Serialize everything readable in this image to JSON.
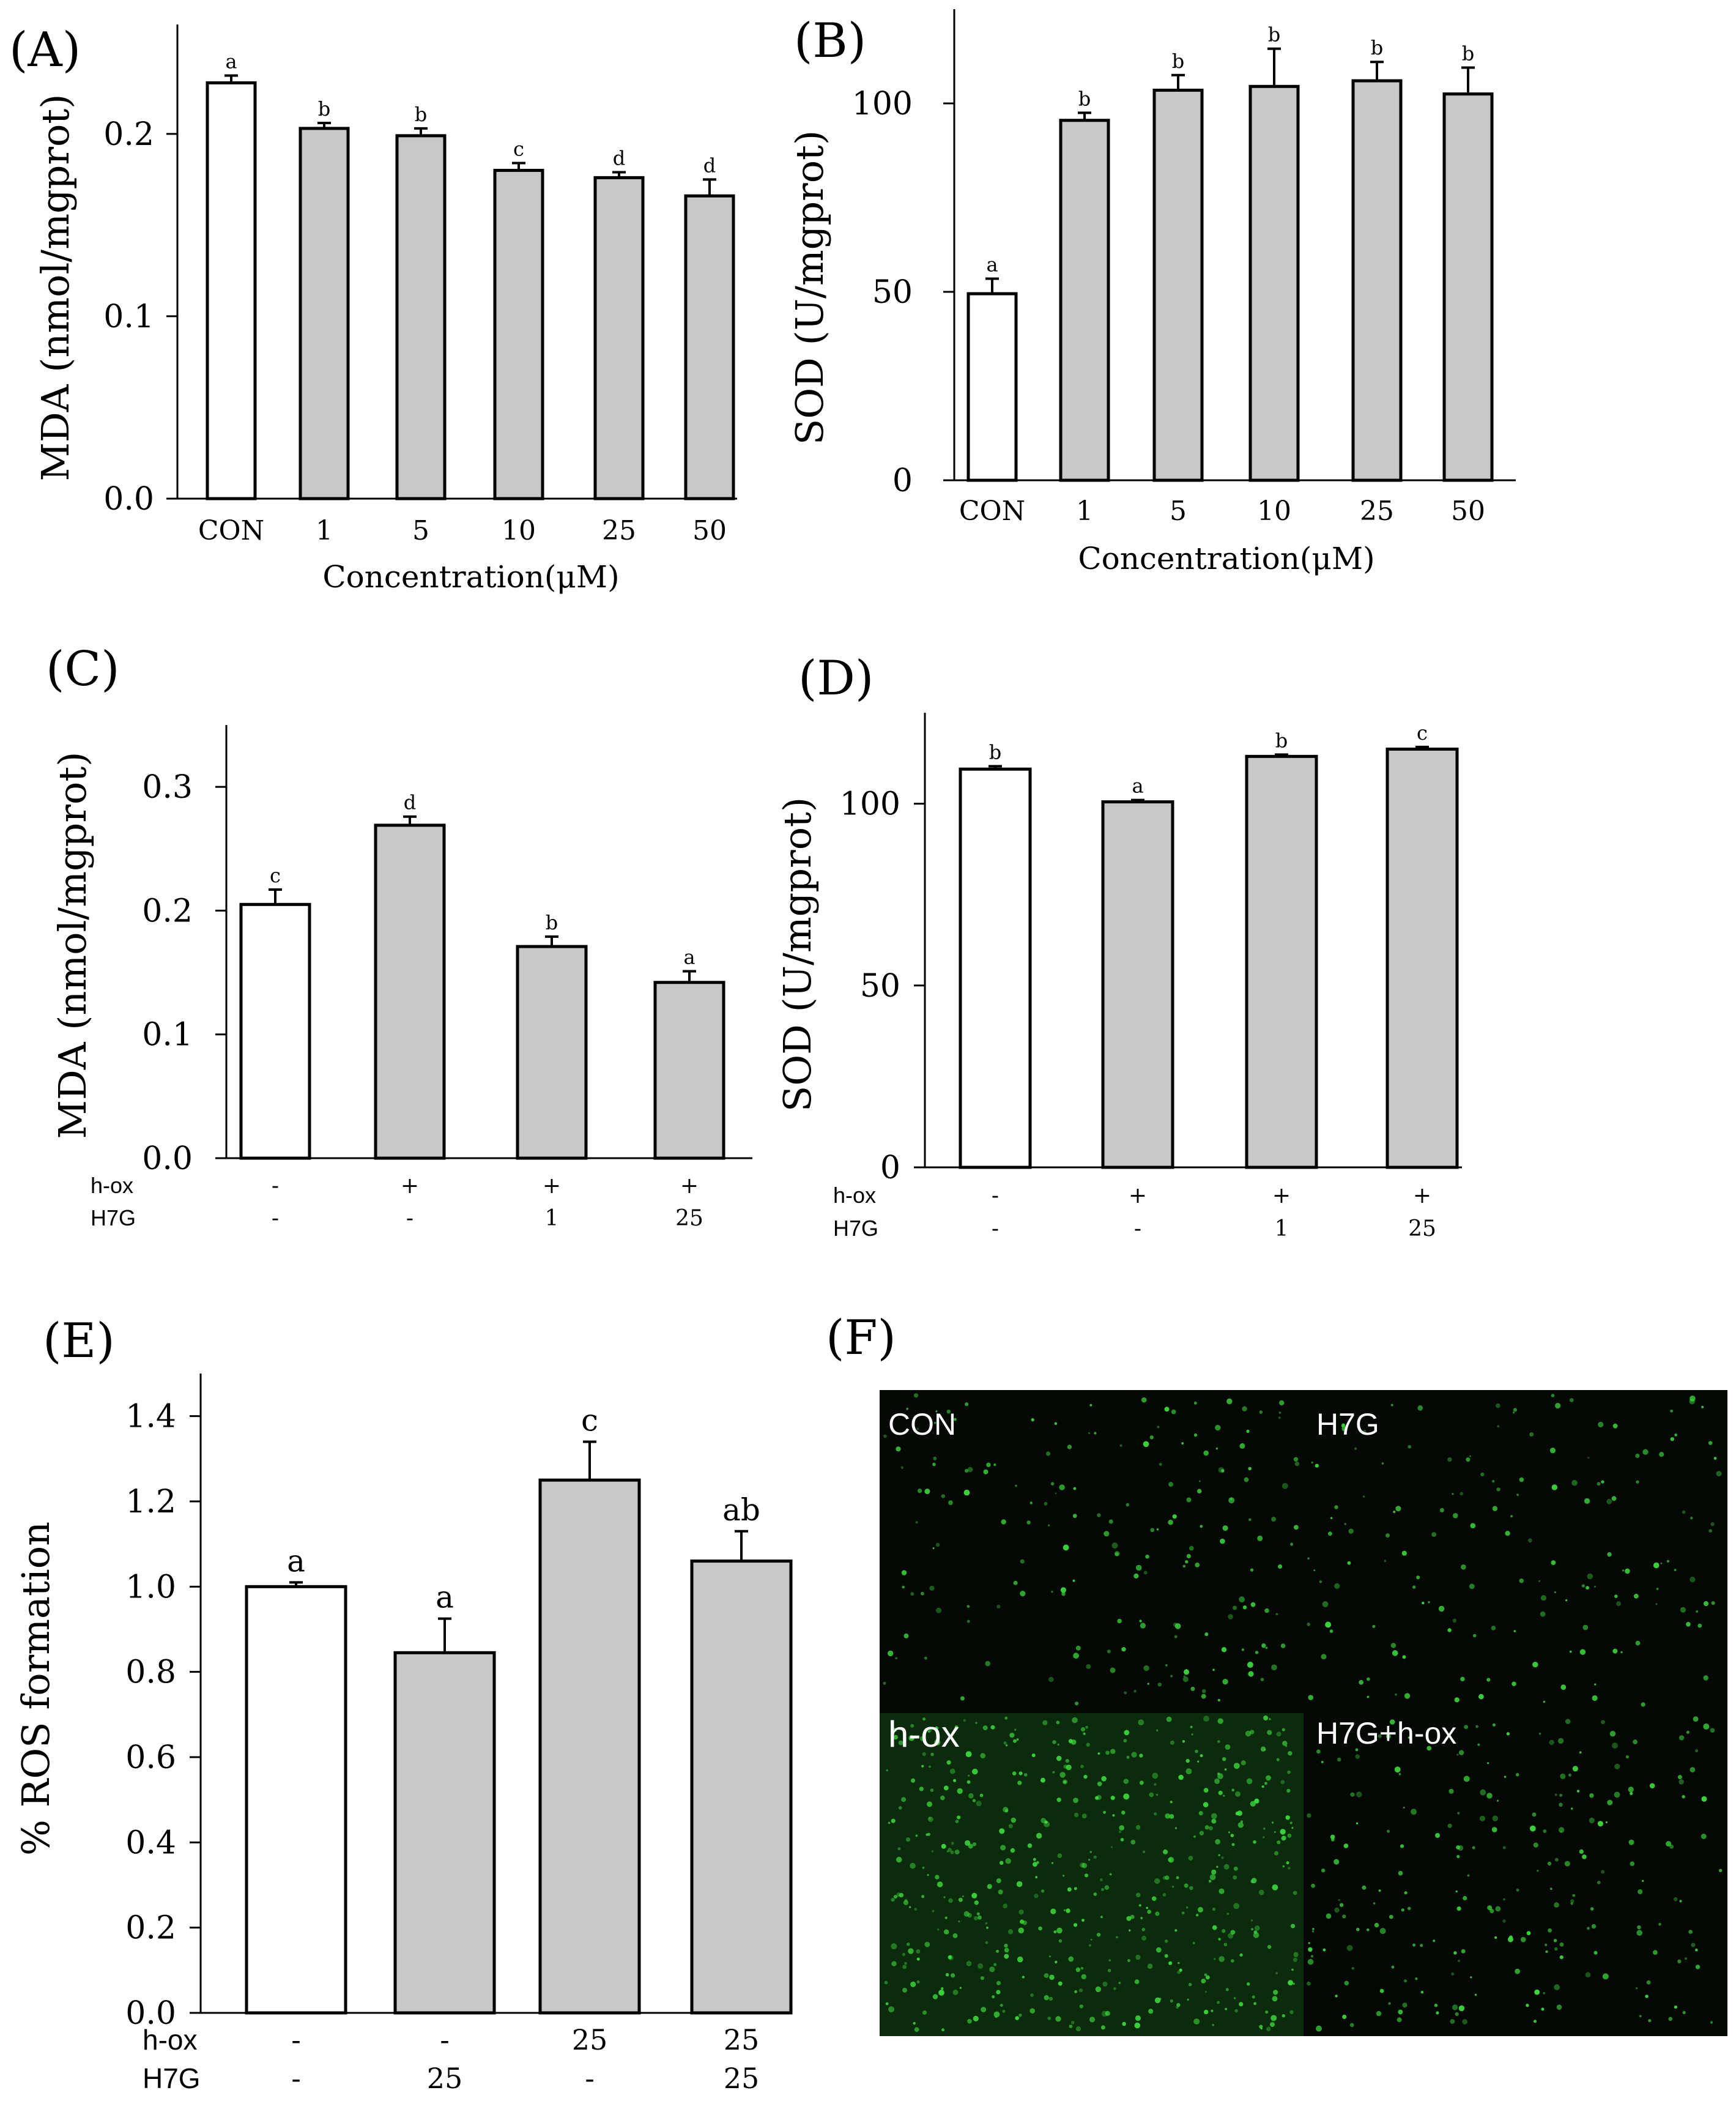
{
  "colors": {
    "control_bar": "#ffffff",
    "treated_bar": "#c8c8c8",
    "axis": "#000000",
    "fluorescence_bg": "#050805",
    "fluorescence_cell": "#3ddc3d",
    "fluorescence_label": "#ffffff"
  },
  "chart_data": [
    {
      "panel": "(A)",
      "type": "bar",
      "ylabel": "MDA (nmol/mgprot)",
      "xlabel": "Concentration(μM)",
      "categories": [
        "CON",
        "1",
        "5",
        "10",
        "25",
        "50"
      ],
      "values": [
        0.228,
        0.203,
        0.199,
        0.18,
        0.176,
        0.166
      ],
      "errors": [
        0.004,
        0.003,
        0.004,
        0.004,
        0.003,
        0.009
      ],
      "letters": [
        "a",
        "b",
        "b",
        "c",
        "d",
        "d"
      ],
      "ylim": [
        0,
        0.26
      ],
      "yticks": [
        "0.0",
        "0.1",
        "0.2"
      ],
      "ytick_values": [
        0,
        0.1,
        0.2
      ]
    },
    {
      "panel": "(B)",
      "type": "bar",
      "ylabel": "SOD (U/mgprot)",
      "xlabel": "Concentration(μM)",
      "categories": [
        "CON",
        "1",
        "5",
        "10",
        "25",
        "50"
      ],
      "values": [
        49.5,
        95.5,
        103.5,
        104.5,
        106,
        102.5
      ],
      "errors": [
        4,
        2,
        4,
        10,
        5,
        7
      ],
      "letters": [
        "a",
        "b",
        "b",
        "b",
        "b",
        "b"
      ],
      "ylim": [
        0,
        125
      ],
      "yticks": [
        "0",
        "50",
        "100"
      ],
      "ytick_values": [
        0,
        50,
        100
      ]
    },
    {
      "panel": "(C)",
      "type": "bar",
      "ylabel": "MDA (nmol/mgprot)",
      "condition_labels": [
        "h-ox",
        "H7G"
      ],
      "conditions": [
        [
          "-",
          "+",
          "+",
          "+"
        ],
        [
          "-",
          "-",
          "1",
          "25"
        ]
      ],
      "values": [
        0.205,
        0.269,
        0.171,
        0.142
      ],
      "errors": [
        0.012,
        0.007,
        0.008,
        0.009
      ],
      "letters": [
        "c",
        "d",
        "b",
        "a"
      ],
      "ylim": [
        0,
        0.35
      ],
      "yticks": [
        "0.0",
        "0.1",
        "0.2",
        "0.3"
      ],
      "ytick_values": [
        0,
        0.1,
        0.2,
        0.3
      ]
    },
    {
      "panel": "(D)",
      "type": "bar",
      "ylabel": "SOD (U/mgprot)",
      "condition_labels": [
        "h-ox",
        "H7G"
      ],
      "conditions": [
        [
          "-",
          "+",
          "+",
          "+"
        ],
        [
          "-",
          "-",
          "1",
          "25"
        ]
      ],
      "values": [
        109.5,
        100.5,
        113,
        115
      ],
      "errors": [
        0.8,
        0.5,
        0.5,
        0.6
      ],
      "letters": [
        "b",
        "a",
        "b",
        "c"
      ],
      "ylim": [
        0,
        125
      ],
      "yticks": [
        "0",
        "50",
        "100"
      ],
      "ytick_values": [
        0,
        50,
        100
      ]
    },
    {
      "panel": "(E)",
      "type": "bar",
      "ylabel": "% ROS formation",
      "condition_labels": [
        "h-ox",
        "H7G"
      ],
      "conditions": [
        [
          "-",
          "-",
          "25",
          "25"
        ],
        [
          "-",
          "25",
          "-",
          "25"
        ]
      ],
      "values": [
        1.0,
        0.845,
        1.25,
        1.06
      ],
      "errors": [
        0.01,
        0.08,
        0.09,
        0.07
      ],
      "letters": [
        "a",
        "a",
        "c",
        "ab"
      ],
      "ylim": [
        0,
        1.5
      ],
      "yticks": [
        "0.0",
        "0.2",
        "0.4",
        "0.6",
        "0.8",
        "1.0",
        "1.2",
        "1.4"
      ],
      "ytick_values": [
        0,
        0.2,
        0.4,
        0.6,
        0.8,
        1.0,
        1.2,
        1.4
      ]
    }
  ],
  "micrographs": {
    "panel": "(F)",
    "labels": [
      "CON",
      "H7G",
      "h-ox",
      "H7G+h-ox"
    ],
    "cell_density": [
      0.35,
      0.3,
      1.0,
      0.45
    ]
  }
}
